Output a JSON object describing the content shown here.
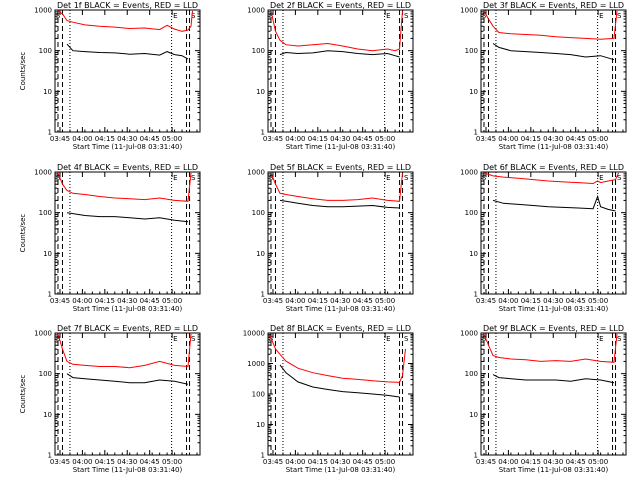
{
  "figure": {
    "events_color": "#000000",
    "lld_color": "#ff0000"
  },
  "chart_data": [
    {
      "type": "line",
      "title": "Det 1f BLACK = Events, RED = LLD",
      "xlabel": "Start Time (11-Jul-08 03:31:40)",
      "ylabel": "Counts/sec",
      "x_tick_labels": [
        "03:45",
        "04:00",
        "04:15",
        "04:30",
        "04:45",
        "05:00"
      ],
      "y_tick_labels": [
        "1",
        "10",
        "100",
        "1000"
      ],
      "x_unit": "minutes_after_start",
      "xlim": [
        0,
        97
      ],
      "ylim": [
        1,
        1000
      ],
      "y_scale": "log",
      "markers": [
        "S",
        "E",
        "S"
      ],
      "series": [
        {
          "name": "Events",
          "color": "#000000",
          "x": [
            8,
            12,
            20,
            30,
            40,
            50,
            60,
            70,
            75,
            80,
            85,
            89
          ],
          "y": [
            145,
            100,
            95,
            90,
            88,
            82,
            85,
            78,
            95,
            80,
            75,
            62
          ]
        },
        {
          "name": "LLD",
          "color": "#ff0000",
          "x": [
            2,
            5,
            8,
            12,
            20,
            30,
            40,
            50,
            60,
            70,
            75,
            80,
            85,
            89,
            91,
            92
          ],
          "y": [
            950,
            800,
            550,
            500,
            430,
            400,
            380,
            350,
            360,
            330,
            420,
            340,
            300,
            320,
            400,
            950
          ]
        }
      ]
    },
    {
      "type": "line",
      "title": "Det 2f BLACK = Events, RED = LLD",
      "xlabel": "Start Time (11-Jul-08 03:31:40)",
      "ylabel": "",
      "x_tick_labels": [
        "03:45",
        "04:00",
        "04:15",
        "04:30",
        "04:45",
        "05:00"
      ],
      "y_tick_labels": [
        "1",
        "10",
        "100",
        "1000"
      ],
      "x_unit": "minutes_after_start",
      "xlim": [
        0,
        97
      ],
      "ylim": [
        1,
        1000
      ],
      "y_scale": "log",
      "markers": [
        "S",
        "E",
        "S"
      ],
      "series": [
        {
          "name": "Events",
          "color": "#000000",
          "x": [
            8,
            12,
            20,
            30,
            40,
            50,
            60,
            70,
            80,
            85,
            88
          ],
          "y": [
            80,
            90,
            85,
            88,
            100,
            95,
            85,
            80,
            85,
            75,
            70
          ]
        },
        {
          "name": "LLD",
          "color": "#ff0000",
          "x": [
            2,
            5,
            8,
            12,
            20,
            30,
            40,
            50,
            60,
            70,
            80,
            85,
            88,
            90
          ],
          "y": [
            950,
            300,
            180,
            140,
            130,
            140,
            150,
            130,
            110,
            100,
            110,
            100,
            110,
            950
          ]
        }
      ]
    },
    {
      "type": "line",
      "title": "Det 3f BLACK = Events, RED = LLD",
      "xlabel": "Start Time (11-Jul-08 03:31:40)",
      "ylabel": "",
      "x_tick_labels": [
        "03:45",
        "04:00",
        "04:15",
        "04:30",
        "04:45",
        "05:00"
      ],
      "y_tick_labels": [
        "1",
        "10",
        "100",
        "1000"
      ],
      "x_unit": "minutes_after_start",
      "xlim": [
        0,
        97
      ],
      "ylim": [
        1,
        1000
      ],
      "y_scale": "log",
      "markers": [
        "S",
        "E",
        "S"
      ],
      "series": [
        {
          "name": "Events",
          "color": "#000000",
          "x": [
            8,
            12,
            20,
            30,
            40,
            50,
            60,
            70,
            80,
            89
          ],
          "y": [
            150,
            120,
            100,
            95,
            90,
            85,
            80,
            70,
            75,
            60
          ]
        },
        {
          "name": "LLD",
          "color": "#ff0000",
          "x": [
            2,
            5,
            8,
            12,
            20,
            30,
            40,
            50,
            60,
            70,
            80,
            89,
            91
          ],
          "y": [
            950,
            600,
            400,
            280,
            260,
            250,
            240,
            220,
            210,
            200,
            190,
            200,
            950
          ]
        }
      ]
    },
    {
      "type": "line",
      "title": "Det 4f BLACK = Events, RED = LLD",
      "xlabel": "Start Time (11-Jul-08 03:31:40)",
      "ylabel": "Counts/sec",
      "x_tick_labels": [
        "03:45",
        "04:00",
        "04:15",
        "04:30",
        "04:45",
        "05:00"
      ],
      "y_tick_labels": [
        "1",
        "10",
        "100",
        "1000"
      ],
      "x_unit": "minutes_after_start",
      "xlim": [
        0,
        97
      ],
      "ylim": [
        1,
        1000
      ],
      "y_scale": "log",
      "markers": [
        "S",
        "E",
        "S"
      ],
      "series": [
        {
          "name": "Events",
          "color": "#000000",
          "x": [
            8,
            12,
            20,
            30,
            40,
            50,
            60,
            70,
            80,
            89
          ],
          "y": [
            100,
            95,
            85,
            80,
            80,
            75,
            70,
            75,
            65,
            60
          ]
        },
        {
          "name": "LLD",
          "color": "#ff0000",
          "x": [
            2,
            5,
            8,
            12,
            20,
            30,
            40,
            50,
            60,
            70,
            80,
            89,
            91
          ],
          "y": [
            950,
            500,
            350,
            300,
            280,
            250,
            230,
            220,
            210,
            230,
            200,
            190,
            950
          ]
        }
      ]
    },
    {
      "type": "line",
      "title": "Det 5f BLACK = Events, RED = LLD",
      "xlabel": "Start Time (11-Jul-08 03:31:40)",
      "ylabel": "",
      "x_tick_labels": [
        "03:45",
        "04:00",
        "04:15",
        "04:30",
        "04:45",
        "05:00"
      ],
      "y_tick_labels": [
        "1",
        "10",
        "100",
        "1000"
      ],
      "x_unit": "minutes_after_start",
      "xlim": [
        0,
        97
      ],
      "ylim": [
        1,
        1000
      ],
      "y_scale": "log",
      "markers": [
        "S",
        "E",
        "S"
      ],
      "series": [
        {
          "name": "Events",
          "color": "#000000",
          "x": [
            8,
            12,
            20,
            30,
            40,
            50,
            60,
            70,
            80,
            88
          ],
          "y": [
            200,
            190,
            170,
            150,
            140,
            140,
            145,
            150,
            135,
            130
          ]
        },
        {
          "name": "LLD",
          "color": "#ff0000",
          "x": [
            2,
            5,
            8,
            12,
            20,
            30,
            40,
            50,
            60,
            70,
            80,
            88,
            90
          ],
          "y": [
            950,
            500,
            300,
            280,
            250,
            220,
            200,
            200,
            210,
            230,
            200,
            190,
            950
          ]
        }
      ]
    },
    {
      "type": "line",
      "title": "Det 6f BLACK = Events, RED = LLD",
      "xlabel": "Start Time (11-Jul-08 03:31:40)",
      "ylabel": "",
      "x_tick_labels": [
        "03:45",
        "04:00",
        "04:15",
        "04:30",
        "04:45",
        "05:00"
      ],
      "y_tick_labels": [
        "1",
        "10",
        "100",
        "1000"
      ],
      "x_unit": "minutes_after_start",
      "xlim": [
        0,
        97
      ],
      "ylim": [
        1,
        1000
      ],
      "y_scale": "log",
      "markers": [
        "S",
        "E",
        "S"
      ],
      "series": [
        {
          "name": "Events",
          "color": "#000000",
          "x": [
            8,
            15,
            25,
            35,
            45,
            55,
            65,
            75,
            78,
            80,
            85,
            90
          ],
          "y": [
            200,
            170,
            160,
            150,
            140,
            135,
            130,
            125,
            250,
            140,
            120,
            110
          ]
        },
        {
          "name": "LLD",
          "color": "#ff0000",
          "x": [
            2,
            8,
            15,
            25,
            35,
            45,
            55,
            65,
            75,
            78,
            80,
            85,
            90,
            92
          ],
          "y": [
            950,
            800,
            750,
            700,
            650,
            600,
            570,
            550,
            520,
            600,
            550,
            600,
            650,
            950
          ]
        }
      ]
    },
    {
      "type": "line",
      "title": "Det 7f BLACK = Events, RED = LLD",
      "xlabel": "Start Time (11-Jul-08 03:31:40)",
      "ylabel": "Counts/sec",
      "x_tick_labels": [
        "03:45",
        "04:00",
        "04:15",
        "04:30",
        "04:45",
        "05:00"
      ],
      "y_tick_labels": [
        "1",
        "10",
        "100",
        "1000"
      ],
      "x_unit": "minutes_after_start",
      "xlim": [
        0,
        97
      ],
      "ylim": [
        1,
        1000
      ],
      "y_scale": "log",
      "markers": [
        "S",
        "E",
        "S"
      ],
      "series": [
        {
          "name": "Events",
          "color": "#000000",
          "x": [
            8,
            12,
            20,
            30,
            40,
            50,
            60,
            70,
            80,
            89
          ],
          "y": [
            100,
            80,
            75,
            70,
            65,
            60,
            60,
            70,
            65,
            55
          ]
        },
        {
          "name": "LLD",
          "color": "#ff0000",
          "x": [
            2,
            5,
            8,
            12,
            20,
            30,
            40,
            50,
            60,
            70,
            80,
            89,
            91
          ],
          "y": [
            950,
            400,
            200,
            170,
            160,
            150,
            150,
            140,
            160,
            200,
            160,
            150,
            950
          ]
        }
      ]
    },
    {
      "type": "line",
      "title": "Det 8f BLACK = Events, RED = LLD",
      "xlabel": "Start Time (11-Jul-08 03:31:40)",
      "ylabel": "",
      "x_tick_labels": [
        "03:45",
        "04:00",
        "04:15",
        "04:30",
        "04:45",
        "05:00"
      ],
      "y_tick_labels": [
        "1",
        "10",
        "100",
        "1000",
        "10000"
      ],
      "x_unit": "minutes_after_start",
      "xlim": [
        0,
        97
      ],
      "ylim": [
        1,
        10000
      ],
      "y_scale": "log",
      "markers": [
        "S",
        "E",
        "S"
      ],
      "series": [
        {
          "name": "Events",
          "color": "#000000",
          "x": [
            8,
            12,
            20,
            30,
            40,
            50,
            60,
            70,
            80,
            88
          ],
          "y": [
            900,
            500,
            250,
            170,
            140,
            120,
            110,
            100,
            90,
            80
          ]
        },
        {
          "name": "LLD",
          "color": "#ff0000",
          "x": [
            1,
            5,
            8,
            12,
            20,
            30,
            40,
            50,
            60,
            70,
            80,
            88,
            90,
            92
          ],
          "y": [
            9000,
            3000,
            2000,
            1200,
            700,
            500,
            400,
            330,
            300,
            270,
            250,
            240,
            400,
            3000
          ]
        }
      ]
    },
    {
      "type": "line",
      "title": "Det 9f BLACK = Events, RED = LLD",
      "xlabel": "Start Time (11-Jul-08 03:31:40)",
      "ylabel": "",
      "x_tick_labels": [
        "03:45",
        "04:00",
        "04:15",
        "04:30",
        "04:45",
        "05:00"
      ],
      "y_tick_labels": [
        "1",
        "10",
        "100",
        "1000"
      ],
      "x_unit": "minutes_after_start",
      "xlim": [
        0,
        97
      ],
      "ylim": [
        1,
        1000
      ],
      "y_scale": "log",
      "markers": [
        "S",
        "E",
        "S"
      ],
      "series": [
        {
          "name": "Events",
          "color": "#000000",
          "x": [
            8,
            12,
            20,
            30,
            40,
            50,
            60,
            70,
            80,
            89
          ],
          "y": [
            95,
            80,
            75,
            70,
            70,
            70,
            65,
            75,
            70,
            60
          ]
        },
        {
          "name": "LLD",
          "color": "#ff0000",
          "x": [
            2,
            5,
            8,
            12,
            20,
            30,
            40,
            50,
            60,
            70,
            80,
            89,
            91
          ],
          "y": [
            950,
            500,
            280,
            250,
            230,
            220,
            200,
            210,
            200,
            230,
            200,
            190,
            950
          ]
        }
      ]
    }
  ]
}
